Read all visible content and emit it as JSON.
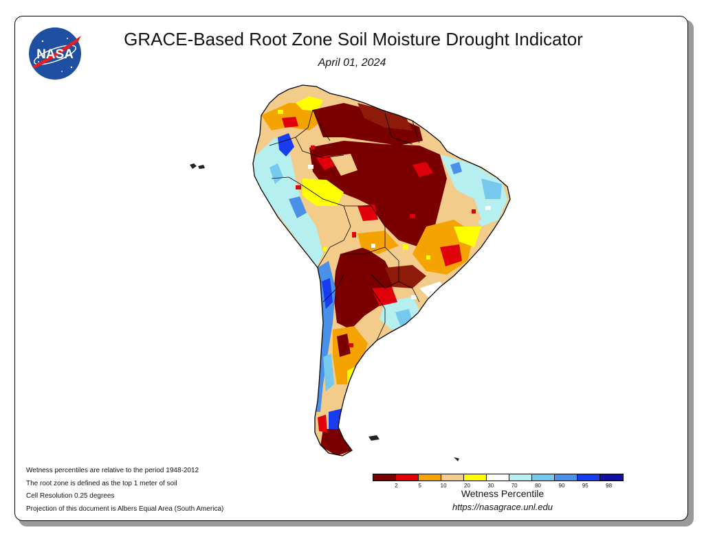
{
  "title": "GRACE-Based Root Zone Soil Moisture Drought Indicator",
  "date": "April 01, 2024",
  "logo_text": "NASA",
  "notes": [
    "Wetness percentiles are relative to the period 1948-2012",
    "The root zone is defined as the top 1 meter of soil",
    "Cell Resolution 0.25 degrees",
    "Projection of this document is Albers Equal Area (South America)"
  ],
  "legend": {
    "title": "Wetness Percentile",
    "colors": [
      "#7a0000",
      "#e0000a",
      "#f5a300",
      "#f3cb8a",
      "#ffff00",
      "#ffffff",
      "#b5efef",
      "#76c8ec",
      "#4a90e8",
      "#1a3cf0",
      "#1010a8"
    ],
    "ticks": [
      "2",
      "5",
      "10",
      "20",
      "30",
      "70",
      "80",
      "90",
      "95",
      "98"
    ]
  },
  "url": "https://nasagrace.unl.edu",
  "palette": {
    "drought_extreme": "#7a0000",
    "drought_dark": "#8e1a0a",
    "drought_red": "#e0000a",
    "orange": "#f5a300",
    "tan": "#f3cb8a",
    "yellow": "#ffff00",
    "light_cyan": "#b5efef",
    "light_blue": "#76c8ec",
    "blue": "#4a90e8",
    "deep_blue": "#1a3cf0"
  }
}
